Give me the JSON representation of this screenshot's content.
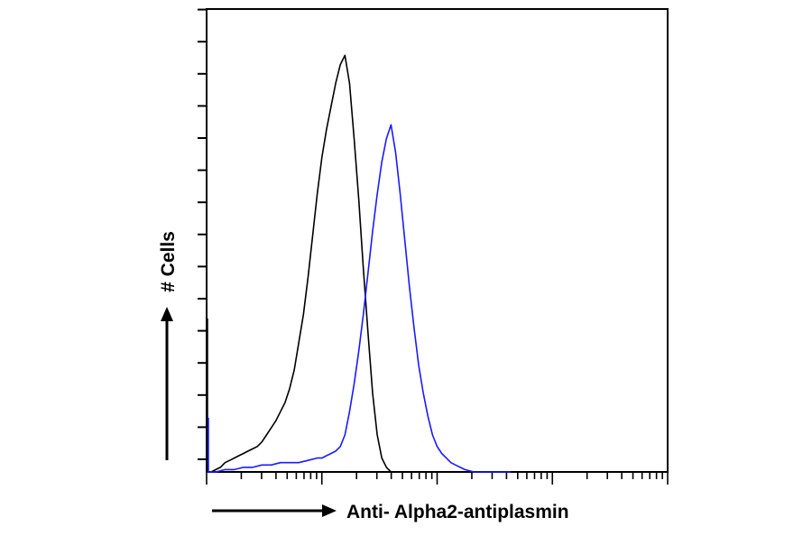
{
  "chart_data": {
    "type": "line",
    "title": "",
    "xlabel": "Anti- Alpha2-antiplasmin",
    "ylabel": "# Cells",
    "x_scale": "log",
    "xlim": [
      0,
      100
    ],
    "ylim": [
      0,
      100
    ],
    "grid": false,
    "legend": "none",
    "series": [
      {
        "color": "#000000",
        "x": [
          0,
          1,
          2,
          3,
          4,
          5,
          6,
          7,
          8,
          9,
          10,
          11,
          12,
          13,
          14,
          15,
          16,
          17,
          18,
          19,
          20,
          21,
          22,
          23,
          24,
          25,
          26,
          27,
          28,
          29,
          30,
          31,
          32,
          33,
          34,
          35,
          36,
          37,
          38,
          39,
          40,
          41,
          42,
          43,
          44,
          45,
          46
        ],
        "y": [
          0,
          0,
          0.5,
          1,
          2,
          2.5,
          3,
          3.5,
          4,
          4.5,
          5,
          5.5,
          6.5,
          8,
          9.5,
          11,
          13,
          15,
          18,
          22,
          28,
          34,
          42,
          51,
          60,
          68,
          74,
          79,
          84,
          88,
          90,
          84,
          72,
          59,
          44,
          30,
          17,
          8,
          3,
          1,
          0,
          0,
          0,
          0,
          0,
          0,
          0
        ]
      },
      {
        "color": "#1a1aff",
        "x": [
          0,
          2,
          4,
          6,
          8,
          10,
          12,
          14,
          16,
          18,
          20,
          22,
          24,
          25,
          26,
          27,
          28,
          29,
          30,
          31,
          32,
          33,
          34,
          35,
          36,
          37,
          38,
          39,
          40,
          41,
          42,
          43,
          44,
          45,
          46,
          47,
          48,
          49,
          50,
          51,
          52,
          53,
          54,
          55,
          56,
          58,
          60,
          62,
          64,
          66
        ],
        "y": [
          0,
          0,
          0.5,
          0.5,
          1,
          1,
          1.5,
          1.5,
          2,
          2,
          2,
          2.5,
          3,
          3,
          3.5,
          4,
          4.5,
          5.5,
          8,
          13,
          19,
          26,
          34,
          43,
          52,
          60,
          67,
          72,
          75,
          69,
          60,
          50,
          40,
          31,
          23,
          17,
          12,
          8,
          5.5,
          4,
          3,
          2,
          1.5,
          1,
          0.5,
          0,
          0,
          0,
          0,
          0
        ]
      }
    ]
  }
}
